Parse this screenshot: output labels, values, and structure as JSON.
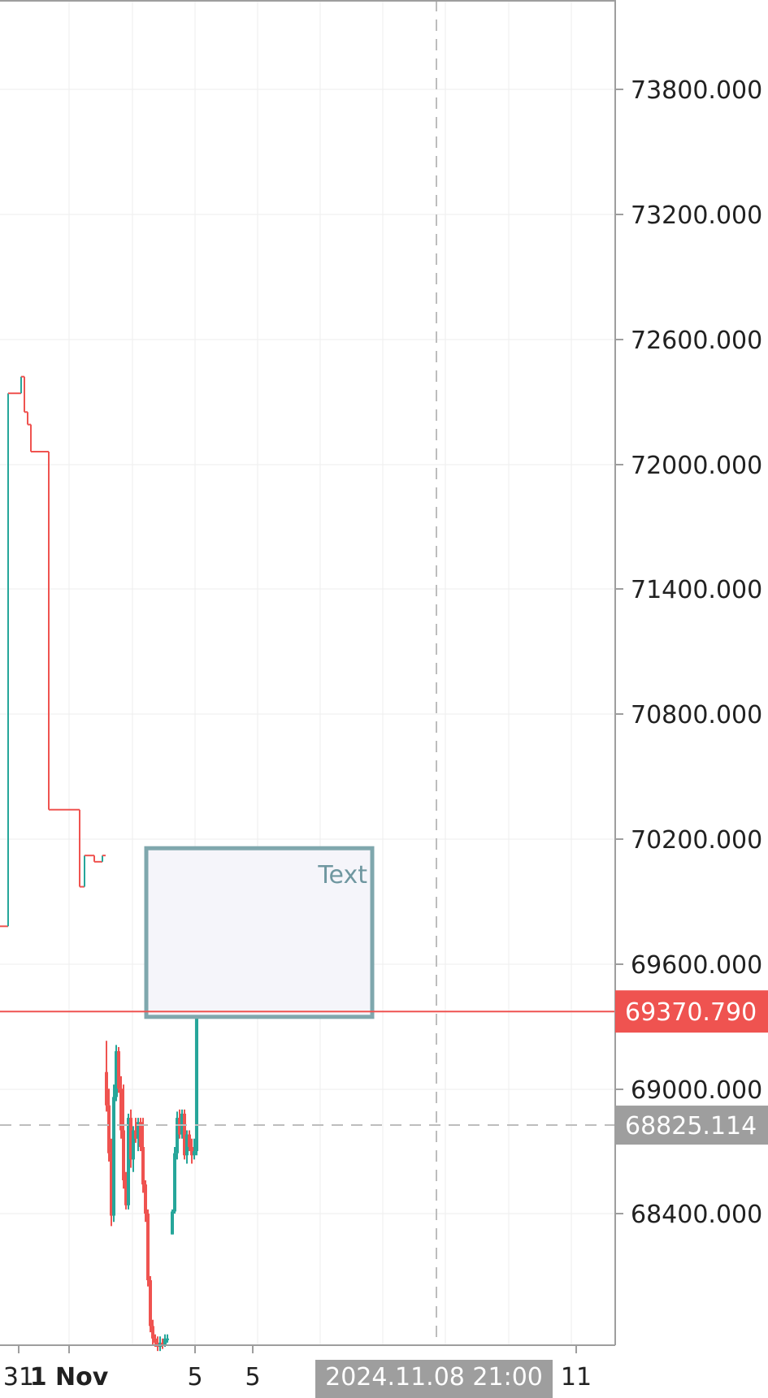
{
  "chart_data": {
    "type": "candlestick",
    "title": "",
    "colors": {
      "up": "#26a69a",
      "down": "#ef5350",
      "grid": "#eeeeee",
      "axis": "#9e9e9e",
      "crosshair": "#bdbdbd",
      "box_border": "#7fa7ad",
      "box_fill": "#f5f5fa",
      "box_text": "#6f97a0",
      "last_price_bg": "#ef5350",
      "crosshair_label_bg": "#9e9e9e",
      "label_text": "#ffffff",
      "tick_text": "#212121"
    },
    "y_axis": {
      "ticks": [
        "73800.000",
        "73200.000",
        "72600.000",
        "72000.000",
        "71400.000",
        "70800.000",
        "70200.000",
        "69600.000",
        "69000.000",
        "68400.000"
      ],
      "range": [
        67744,
        74255
      ]
    },
    "x_axis": {
      "ticks": [
        {
          "label": "31",
          "bold": false
        },
        {
          "label": "1 Nov",
          "bold": true
        },
        {
          "label": "5",
          "bold": false
        },
        {
          "label": "5",
          "bold": false
        },
        {
          "label": "11",
          "bold": false
        }
      ]
    },
    "last_price": {
      "value": 69370.79,
      "label": "69370.790"
    },
    "crosshair": {
      "price": 68825.114,
      "price_label": "68825.114",
      "time_label": "2024.11.08 21:00"
    },
    "annotation_box": {
      "text": "Text",
      "price_top": 70155,
      "price_bottom": 69345
    },
    "price_path": [
      [
        0,
        69780
      ],
      [
        10,
        69780
      ],
      [
        10,
        72340
      ],
      [
        26,
        72340
      ],
      [
        26,
        72420
      ],
      [
        30,
        72420
      ],
      [
        30,
        72250
      ],
      [
        34,
        72250
      ],
      [
        34,
        72190
      ],
      [
        38,
        72190
      ],
      [
        38,
        72060
      ],
      [
        60,
        72060
      ],
      [
        60,
        70340
      ],
      [
        98,
        70340
      ],
      [
        98,
        69970
      ],
      [
        104,
        69970
      ],
      [
        104,
        70120
      ],
      [
        116,
        70120
      ],
      [
        116,
        70090
      ],
      [
        126,
        70090
      ],
      [
        126,
        70120
      ],
      [
        130,
        70120
      ]
    ],
    "candles": [
      {
        "t": 131,
        "o": 69080,
        "h": 69230,
        "l": 68890,
        "c": 68920
      },
      {
        "t": 134,
        "o": 68920,
        "h": 69000,
        "l": 68650,
        "c": 68690
      },
      {
        "t": 137,
        "o": 68690,
        "h": 68760,
        "l": 68340,
        "c": 68390
      },
      {
        "t": 140,
        "o": 68390,
        "h": 69020,
        "l": 68360,
        "c": 68960
      },
      {
        "t": 143,
        "o": 68960,
        "h": 69210,
        "l": 68940,
        "c": 69180
      },
      {
        "t": 146,
        "o": 69180,
        "h": 69200,
        "l": 68980,
        "c": 69000
      },
      {
        "t": 149,
        "o": 69000,
        "h": 69060,
        "l": 68760,
        "c": 68800
      },
      {
        "t": 152,
        "o": 68800,
        "h": 69020,
        "l": 68520,
        "c": 68560
      },
      {
        "t": 155,
        "o": 68560,
        "h": 68600,
        "l": 68420,
        "c": 68440
      },
      {
        "t": 158,
        "o": 68440,
        "h": 68880,
        "l": 68420,
        "c": 68860
      },
      {
        "t": 161,
        "o": 68860,
        "h": 68900,
        "l": 68620,
        "c": 68660
      },
      {
        "t": 164,
        "o": 68660,
        "h": 68820,
        "l": 68600,
        "c": 68800
      },
      {
        "t": 167,
        "o": 68800,
        "h": 68860,
        "l": 68740,
        "c": 68760
      },
      {
        "t": 170,
        "o": 68760,
        "h": 68860,
        "l": 68700,
        "c": 68840
      },
      {
        "t": 173,
        "o": 68840,
        "h": 68860,
        "l": 68700,
        "c": 68720
      },
      {
        "t": 176,
        "o": 68720,
        "h": 68860,
        "l": 68500,
        "c": 68540
      },
      {
        "t": 179,
        "o": 68540,
        "h": 68560,
        "l": 68360,
        "c": 68400
      },
      {
        "t": 182,
        "o": 68400,
        "h": 68420,
        "l": 68050,
        "c": 68080
      },
      {
        "t": 185,
        "o": 68080,
        "h": 68100,
        "l": 67830,
        "c": 67860
      },
      {
        "t": 188,
        "o": 67860,
        "h": 67890,
        "l": 67770,
        "c": 67800
      },
      {
        "t": 191,
        "o": 67800,
        "h": 67820,
        "l": 67760,
        "c": 67780
      },
      {
        "t": 194,
        "o": 67780,
        "h": 67810,
        "l": 67740,
        "c": 67760
      },
      {
        "t": 197,
        "o": 67760,
        "h": 67810,
        "l": 67740,
        "c": 67780
      },
      {
        "t": 200,
        "o": 67780,
        "h": 67800,
        "l": 67750,
        "c": 67770
      },
      {
        "t": 203,
        "o": 67770,
        "h": 67820,
        "l": 67760,
        "c": 67800
      },
      {
        "t": 206,
        "o": 67800,
        "h": 67820,
        "l": 67780,
        "c": 67800
      },
      {
        "t": 212,
        "o": 68300,
        "h": 68420,
        "l": 68300,
        "c": 68410
      },
      {
        "t": 215,
        "o": 68410,
        "h": 68720,
        "l": 68400,
        "c": 68690
      },
      {
        "t": 218,
        "o": 68690,
        "h": 68890,
        "l": 68660,
        "c": 68860
      },
      {
        "t": 221,
        "o": 68860,
        "h": 68900,
        "l": 68760,
        "c": 68780
      },
      {
        "t": 224,
        "o": 68780,
        "h": 68900,
        "l": 68760,
        "c": 68880
      },
      {
        "t": 227,
        "o": 68880,
        "h": 68900,
        "l": 68660,
        "c": 68680
      },
      {
        "t": 230,
        "o": 68680,
        "h": 68800,
        "l": 68640,
        "c": 68780
      },
      {
        "t": 233,
        "o": 68780,
        "h": 68800,
        "l": 68700,
        "c": 68720
      },
      {
        "t": 236,
        "o": 68720,
        "h": 68760,
        "l": 68640,
        "c": 68680
      },
      {
        "t": 239,
        "o": 68680,
        "h": 68760,
        "l": 68660,
        "c": 68700
      },
      {
        "t": 242,
        "o": 68700,
        "h": 69440,
        "l": 68680,
        "c": 69390
      }
    ]
  }
}
